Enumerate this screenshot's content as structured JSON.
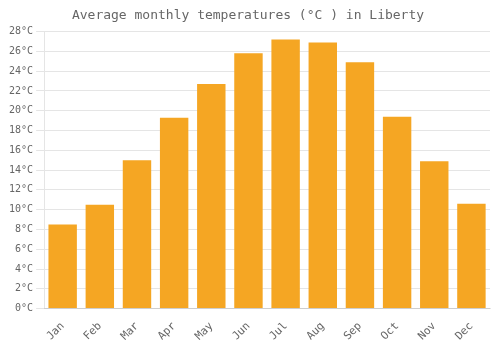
{
  "chart_data": {
    "type": "bar",
    "title": "Average monthly temperatures (°C ) in Liberty",
    "categories": [
      "Jan",
      "Feb",
      "Mar",
      "Apr",
      "May",
      "Jun",
      "Jul",
      "Aug",
      "Sep",
      "Oct",
      "Nov",
      "Dec"
    ],
    "values": [
      8.5,
      10.5,
      15.0,
      19.3,
      22.7,
      25.8,
      27.2,
      26.9,
      24.9,
      19.4,
      14.9,
      10.6
    ],
    "color": "#F5A623",
    "ylim": [
      0,
      28
    ],
    "yticks": [
      {
        "value": 0,
        "label": "0°C"
      },
      {
        "value": 2,
        "label": "2°C"
      },
      {
        "value": 4,
        "label": "4°C"
      },
      {
        "value": 6,
        "label": "6°C"
      },
      {
        "value": 8,
        "label": "8°C"
      },
      {
        "value": 10,
        "label": "10°C"
      },
      {
        "value": 12,
        "label": "12°C"
      },
      {
        "value": 14,
        "label": "14°C"
      },
      {
        "value": 16,
        "label": "16°C"
      },
      {
        "value": 18,
        "label": "18°C"
      },
      {
        "value": 20,
        "label": "20°C"
      },
      {
        "value": 22,
        "label": "22°C"
      },
      {
        "value": 24,
        "label": "24°C"
      },
      {
        "value": 26,
        "label": "26°C"
      },
      {
        "value": 28,
        "label": "28°C"
      }
    ],
    "grid": true
  }
}
